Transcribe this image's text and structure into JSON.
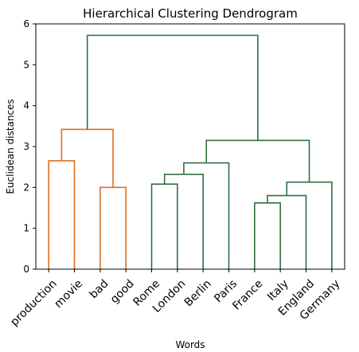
{
  "chart_data": {
    "type": "dendrogram",
    "title": "Hierarchical Clustering Dendrogram",
    "xlabel": "Words",
    "ylabel": "Euclidean distances",
    "ylim": [
      0,
      6
    ],
    "yticks": [
      0,
      1,
      2,
      3,
      4,
      5,
      6
    ],
    "grid": false,
    "leaves": [
      "production",
      "movie",
      "bad",
      "good",
      "Rome",
      "London",
      "Berlin",
      "Paris",
      "France",
      "Italy",
      "England",
      "Germany"
    ],
    "colors": {
      "cluster_a": "#e07020",
      "cluster_b": "#2f7040",
      "above_threshold": "#2f7040"
    },
    "merges": [
      {
        "left": "production",
        "right": "movie",
        "height": 2.65,
        "color": "cluster_a"
      },
      {
        "left": "bad",
        "right": "good",
        "height": 2.0,
        "color": "cluster_a"
      },
      {
        "left": "production+movie",
        "right": "bad+good",
        "height": 3.42,
        "color": "cluster_a"
      },
      {
        "left": "Rome",
        "right": "London",
        "height": 2.08,
        "color": "cluster_b"
      },
      {
        "left": "Rome+London",
        "right": "Berlin",
        "height": 2.32,
        "color": "cluster_b"
      },
      {
        "left": "Rome+London+Berlin",
        "right": "Paris",
        "height": 2.6,
        "color": "cluster_b"
      },
      {
        "left": "France",
        "right": "Italy",
        "height": 1.62,
        "color": "cluster_b"
      },
      {
        "left": "France+Italy",
        "right": "England",
        "height": 1.8,
        "color": "cluster_b"
      },
      {
        "left": "France+Italy+England",
        "right": "Germany",
        "height": 2.13,
        "color": "cluster_b"
      },
      {
        "left": "Rome+London+Berlin+Paris",
        "right": "France+Italy+England+Germany",
        "height": 3.15,
        "color": "cluster_b"
      },
      {
        "left": "production+movie+bad+good",
        "right": "Rome+London+Berlin+Paris+France+Italy+England+Germany",
        "height": 5.72,
        "color": "above_threshold"
      }
    ]
  }
}
